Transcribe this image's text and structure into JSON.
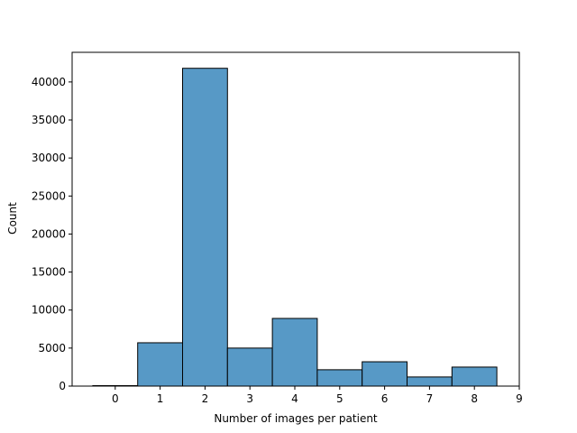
{
  "chart_data": {
    "type": "bar",
    "title": "",
    "xlabel": "Number of images per patient",
    "ylabel": "Count",
    "categories": [
      0,
      1,
      2,
      3,
      4,
      5,
      6,
      7,
      8
    ],
    "values": [
      60,
      5700,
      41800,
      5000,
      8900,
      2150,
      3200,
      1200,
      2500
    ],
    "x_ticks": [
      0,
      1,
      2,
      3,
      4,
      5,
      6,
      7,
      8,
      9
    ],
    "y_ticks": [
      0,
      5000,
      10000,
      15000,
      20000,
      25000,
      30000,
      35000,
      40000
    ],
    "xlim": [
      -0.96,
      9.0
    ],
    "ylim": [
      0,
      43900
    ],
    "grid": false,
    "bar_color": "#5799c6",
    "edge_color": "#000000"
  }
}
